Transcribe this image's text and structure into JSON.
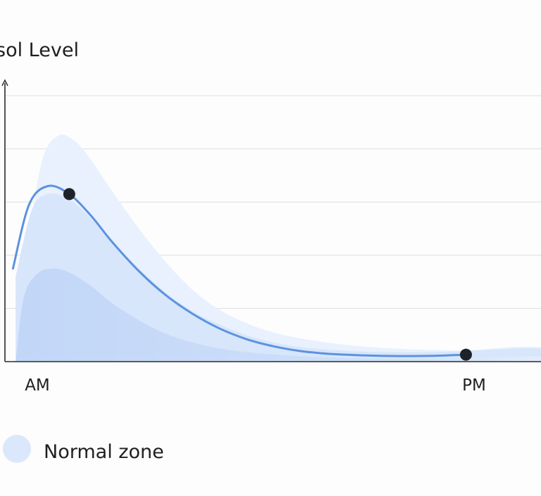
{
  "chart_data": {
    "type": "area",
    "ylabel": "sol Level",
    "xlabel": "",
    "categories": [
      "AM",
      "PM"
    ],
    "x_domain": [
      0,
      10
    ],
    "ylim": [
      0,
      10
    ],
    "grid": true,
    "legend_placement": "bottom-left",
    "legend": [
      {
        "label": "Normal zone",
        "color": "#dbe8fc"
      }
    ],
    "series": [
      {
        "type": "line",
        "color": "#5b93de",
        "x": [
          0.15,
          0.45,
          0.8,
          1.2,
          1.6,
          2.0,
          2.5,
          3.0,
          3.5,
          4.0,
          4.5,
          5.0,
          5.5,
          6.0,
          6.5,
          7.0,
          7.5,
          8.0,
          8.6
        ],
        "values": [
          3.5,
          5.9,
          6.6,
          6.3,
          5.5,
          4.5,
          3.4,
          2.5,
          1.8,
          1.25,
          0.85,
          0.58,
          0.4,
          0.3,
          0.25,
          0.22,
          0.21,
          0.22,
          0.26
        ]
      },
      {
        "type": "area",
        "role": "normal-zone-upper",
        "color": "#e8f1fd",
        "x": [
          0.3,
          0.45,
          0.7,
          1.0,
          1.3,
          1.6,
          2.0,
          2.5,
          3.0,
          3.5,
          4.0,
          4.5,
          5.0,
          5.5,
          6.0,
          6.5,
          7.0,
          7.5,
          8.0,
          8.6,
          9.5,
          10.0
        ],
        "values": [
          0,
          4.5,
          7.6,
          8.5,
          8.3,
          7.6,
          6.4,
          5.0,
          3.75,
          2.7,
          1.95,
          1.45,
          1.1,
          0.88,
          0.72,
          0.6,
          0.52,
          0.47,
          0.44,
          0.42,
          0.55,
          0.55
        ]
      },
      {
        "type": "area",
        "role": "normal-zone-middle",
        "color": "#d8e6fb",
        "x": [
          0.2,
          0.5,
          0.8,
          1.2,
          1.6,
          2.0,
          2.5,
          3.0,
          3.5,
          4.0,
          4.5,
          5.0,
          5.5,
          6.0,
          6.5,
          7.0,
          7.5,
          8.0,
          8.6,
          9.5,
          10.0
        ],
        "values": [
          3.2,
          5.7,
          6.3,
          6.1,
          5.4,
          4.5,
          3.5,
          2.6,
          1.9,
          1.4,
          1.0,
          0.72,
          0.55,
          0.45,
          0.39,
          0.36,
          0.35,
          0.36,
          0.4,
          0.5,
          0.5
        ]
      },
      {
        "type": "area",
        "role": "normal-zone-lower",
        "color": "#c4d8f8",
        "x": [
          0.2,
          0.35,
          0.6,
          0.9,
          1.2,
          1.6,
          2.0,
          2.5,
          3.0,
          3.5,
          4.0,
          4.5,
          5.0,
          5.5,
          6.0,
          6.5,
          7.0,
          7.5,
          8.0,
          8.6,
          9.5,
          10.0
        ],
        "values": [
          0,
          2.4,
          3.3,
          3.5,
          3.35,
          2.85,
          2.2,
          1.55,
          1.05,
          0.72,
          0.5,
          0.36,
          0.27,
          0.2,
          0.16,
          0.13,
          0.11,
          0.1,
          0.1,
          0.12,
          0.2,
          0.2
        ]
      }
    ],
    "markers": [
      {
        "x": 1.2,
        "value": 6.3,
        "color": "#1f2329"
      },
      {
        "x": 8.6,
        "value": 0.26,
        "color": "#1f2329"
      }
    ]
  }
}
